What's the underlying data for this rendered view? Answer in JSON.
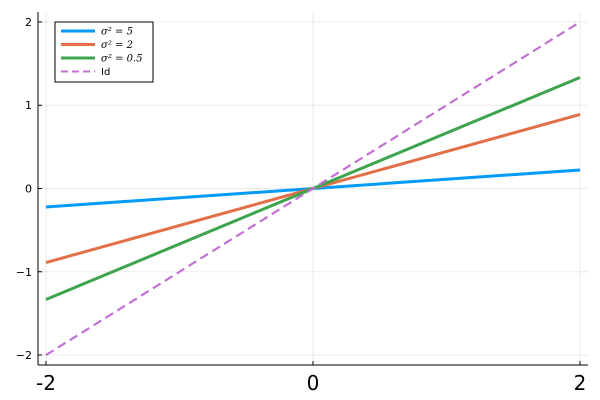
{
  "chart_data": {
    "type": "line",
    "x": [
      -2,
      2
    ],
    "xlim": [
      -2.06,
      2.06
    ],
    "ylim": [
      -2.12,
      2.12
    ],
    "x_ticks": [
      -2,
      0,
      2
    ],
    "x_tick_labels": [
      "-2",
      "0",
      "2"
    ],
    "y_ticks": [
      -2,
      -1,
      0,
      1,
      2
    ],
    "y_tick_labels": [
      "−2",
      "−1",
      "0",
      "1",
      "2"
    ],
    "grid": true,
    "legend_position": "top-left",
    "series": [
      {
        "name": "σ² = 5",
        "slope": 0.111,
        "values": [
          -0.222,
          0.222
        ],
        "color": "#009af9",
        "dash": "solid"
      },
      {
        "name": "σ² = 2",
        "slope": 0.444,
        "values": [
          -0.889,
          0.889
        ],
        "color": "#e26f46",
        "dash": "solid"
      },
      {
        "name": "σ² = 0.5",
        "slope": 0.667,
        "values": [
          -1.333,
          1.333
        ],
        "color": "#3da44d",
        "dash": "solid"
      },
      {
        "name": "Id",
        "slope": 1.0,
        "values": [
          -2,
          2
        ],
        "color": "#c271d2",
        "dash": "dashed"
      }
    ]
  }
}
